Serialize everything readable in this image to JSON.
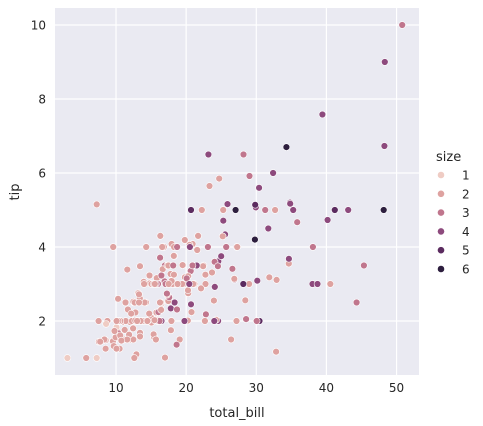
{
  "chart_data": {
    "type": "scatter",
    "title": "",
    "xlabel": "total_bill",
    "ylabel": "tip",
    "xlim": [
      1.3,
      53.2
    ],
    "ylim": [
      0.54,
      10.46
    ],
    "xticks": [
      10,
      20,
      30,
      40,
      50
    ],
    "yticks": [
      2,
      4,
      6,
      8,
      10
    ],
    "grid": true,
    "legend": {
      "title": "size",
      "placement": "right",
      "entries": [
        {
          "label": "1",
          "color": "#EFCCC4"
        },
        {
          "label": "2",
          "color": "#DEA2A0"
        },
        {
          "label": "3",
          "color": "#C0768D"
        },
        {
          "label": "4",
          "color": "#8D4A7D"
        },
        {
          "label": "5",
          "color": "#5B2B5F"
        },
        {
          "label": "6",
          "color": "#2D1E3E"
        }
      ]
    },
    "colors": {
      "background": "#EAEAF2",
      "grid": "#FFFFFF"
    },
    "points": [
      [
        16.99,
        1.01,
        2
      ],
      [
        10.34,
        1.66,
        3
      ],
      [
        21.01,
        3.5,
        3
      ],
      [
        23.68,
        3.31,
        2
      ],
      [
        24.59,
        3.61,
        4
      ],
      [
        25.29,
        4.71,
        4
      ],
      [
        8.77,
        2.0,
        2
      ],
      [
        26.88,
        3.12,
        4
      ],
      [
        15.04,
        1.96,
        2
      ],
      [
        14.78,
        3.23,
        2
      ],
      [
        10.27,
        1.71,
        2
      ],
      [
        35.26,
        5.0,
        4
      ],
      [
        15.42,
        1.57,
        2
      ],
      [
        18.43,
        3.0,
        4
      ],
      [
        14.83,
        3.02,
        2
      ],
      [
        21.58,
        3.92,
        2
      ],
      [
        10.33,
        1.67,
        3
      ],
      [
        16.29,
        3.71,
        3
      ],
      [
        16.97,
        3.5,
        3
      ],
      [
        20.65,
        3.35,
        3
      ],
      [
        17.92,
        4.08,
        2
      ],
      [
        20.29,
        2.75,
        2
      ],
      [
        15.77,
        2.23,
        2
      ],
      [
        39.42,
        7.58,
        4
      ],
      [
        19.82,
        3.18,
        2
      ],
      [
        17.81,
        2.34,
        4
      ],
      [
        13.37,
        2.0,
        2
      ],
      [
        12.69,
        2.0,
        2
      ],
      [
        21.7,
        4.3,
        2
      ],
      [
        19.65,
        3.0,
        2
      ],
      [
        9.55,
        1.45,
        2
      ],
      [
        18.35,
        2.5,
        4
      ],
      [
        15.06,
        3.0,
        2
      ],
      [
        20.69,
        2.45,
        4
      ],
      [
        17.78,
        3.27,
        2
      ],
      [
        24.06,
        3.6,
        3
      ],
      [
        16.31,
        2.0,
        3
      ],
      [
        16.93,
        3.07,
        3
      ],
      [
        18.69,
        2.31,
        3
      ],
      [
        31.27,
        5.0,
        3
      ],
      [
        16.04,
        2.24,
        3
      ],
      [
        17.46,
        2.54,
        2
      ],
      [
        13.94,
        3.06,
        2
      ],
      [
        9.68,
        1.32,
        2
      ],
      [
        30.4,
        5.6,
        4
      ],
      [
        18.29,
        3.0,
        2
      ],
      [
        22.23,
        5.0,
        2
      ],
      [
        32.4,
        6.0,
        4
      ],
      [
        28.55,
        2.05,
        3
      ],
      [
        18.04,
        3.0,
        2
      ],
      [
        12.54,
        2.5,
        2
      ],
      [
        10.29,
        2.6,
        2
      ],
      [
        34.81,
        5.2,
        4
      ],
      [
        9.94,
        1.56,
        2
      ],
      [
        25.56,
        4.34,
        4
      ],
      [
        19.49,
        3.51,
        2
      ],
      [
        38.01,
        3.0,
        4
      ],
      [
        26.41,
        1.5,
        2
      ],
      [
        11.24,
        1.76,
        2
      ],
      [
        48.27,
        6.73,
        4
      ],
      [
        20.29,
        3.21,
        2
      ],
      [
        13.81,
        2.0,
        2
      ],
      [
        11.02,
        1.98,
        2
      ],
      [
        18.29,
        3.76,
        4
      ],
      [
        17.59,
        2.64,
        3
      ],
      [
        20.08,
        3.15,
        3
      ],
      [
        16.45,
        2.47,
        2
      ],
      [
        3.07,
        1.0,
        1
      ],
      [
        20.23,
        2.01,
        2
      ],
      [
        15.01,
        2.09,
        2
      ],
      [
        12.02,
        1.97,
        2
      ],
      [
        17.07,
        3.0,
        3
      ],
      [
        26.86,
        3.14,
        2
      ],
      [
        25.28,
        5.0,
        2
      ],
      [
        14.73,
        2.2,
        2
      ],
      [
        10.51,
        1.25,
        2
      ],
      [
        17.92,
        3.08,
        2
      ],
      [
        27.2,
        4.0,
        4
      ],
      [
        22.76,
        3.0,
        2
      ],
      [
        17.29,
        2.71,
        2
      ],
      [
        19.44,
        3.0,
        2
      ],
      [
        16.66,
        3.4,
        2
      ],
      [
        10.07,
        1.83,
        1
      ],
      [
        32.68,
        5.0,
        2
      ],
      [
        15.98,
        2.03,
        2
      ],
      [
        34.83,
        5.17,
        4
      ],
      [
        13.03,
        2.0,
        2
      ],
      [
        18.28,
        4.0,
        2
      ],
      [
        24.71,
        5.85,
        2
      ],
      [
        21.16,
        3.0,
        2
      ],
      [
        28.97,
        3.0,
        2
      ],
      [
        22.49,
        3.5,
        2
      ],
      [
        5.75,
        1.0,
        2
      ],
      [
        16.32,
        4.3,
        2
      ],
      [
        22.75,
        3.25,
        2
      ],
      [
        40.17,
        4.73,
        4
      ],
      [
        27.28,
        4.0,
        2
      ],
      [
        12.03,
        1.5,
        2
      ],
      [
        21.01,
        3.0,
        2
      ],
      [
        12.46,
        1.5,
        2
      ],
      [
        11.35,
        2.5,
        2
      ],
      [
        15.38,
        3.0,
        2
      ],
      [
        44.3,
        2.5,
        3
      ],
      [
        22.42,
        3.48,
        2
      ],
      [
        20.92,
        4.08,
        2
      ],
      [
        15.36,
        1.64,
        2
      ],
      [
        20.49,
        4.06,
        2
      ],
      [
        25.21,
        4.29,
        2
      ],
      [
        18.24,
        3.76,
        2
      ],
      [
        14.31,
        4.0,
        2
      ],
      [
        14.0,
        3.0,
        2
      ],
      [
        7.25,
        1.0,
        1
      ],
      [
        38.07,
        4.0,
        3
      ],
      [
        23.95,
        2.55,
        2
      ],
      [
        25.71,
        4.0,
        3
      ],
      [
        17.31,
        3.5,
        2
      ],
      [
        29.93,
        5.07,
        4
      ],
      [
        10.65,
        1.5,
        2
      ],
      [
        12.43,
        1.8,
        2
      ],
      [
        24.08,
        2.92,
        4
      ],
      [
        11.69,
        2.31,
        2
      ],
      [
        13.42,
        1.68,
        2
      ],
      [
        14.26,
        2.5,
        2
      ],
      [
        15.95,
        2.0,
        2
      ],
      [
        12.48,
        2.52,
        2
      ],
      [
        29.8,
        4.2,
        6
      ],
      [
        8.52,
        1.48,
        2
      ],
      [
        14.52,
        2.0,
        2
      ],
      [
        11.38,
        2.0,
        2
      ],
      [
        22.82,
        2.18,
        3
      ],
      [
        19.08,
        1.5,
        2
      ],
      [
        20.27,
        2.83,
        2
      ],
      [
        11.17,
        1.5,
        2
      ],
      [
        12.26,
        2.0,
        2
      ],
      [
        18.26,
        3.25,
        2
      ],
      [
        8.51,
        1.25,
        2
      ],
      [
        10.33,
        2.0,
        2
      ],
      [
        14.15,
        2.0,
        2
      ],
      [
        16.0,
        2.0,
        2
      ],
      [
        13.16,
        2.75,
        2
      ],
      [
        17.47,
        3.5,
        2
      ],
      [
        34.3,
        6.7,
        6
      ],
      [
        41.19,
        5.0,
        5
      ],
      [
        27.05,
        5.0,
        6
      ],
      [
        16.43,
        2.3,
        2
      ],
      [
        8.35,
        1.5,
        2
      ],
      [
        18.64,
        1.36,
        3
      ],
      [
        11.87,
        1.63,
        2
      ],
      [
        9.78,
        1.73,
        2
      ],
      [
        7.51,
        2.0,
        2
      ],
      [
        14.07,
        2.5,
        2
      ],
      [
        13.13,
        2.0,
        2
      ],
      [
        17.26,
        2.74,
        3
      ],
      [
        24.55,
        2.0,
        4
      ],
      [
        19.77,
        2.0,
        4
      ],
      [
        29.85,
        5.14,
        5
      ],
      [
        48.17,
        5.0,
        6
      ],
      [
        25.0,
        3.75,
        4
      ],
      [
        13.39,
        2.61,
        2
      ],
      [
        16.49,
        2.0,
        4
      ],
      [
        21.5,
        3.5,
        4
      ],
      [
        12.66,
        2.5,
        2
      ],
      [
        16.21,
        2.0,
        3
      ],
      [
        13.81,
        2.0,
        2
      ],
      [
        17.51,
        3.0,
        2
      ],
      [
        24.52,
        3.48,
        3
      ],
      [
        20.76,
        2.24,
        2
      ],
      [
        31.71,
        4.5,
        4
      ],
      [
        10.59,
        1.61,
        2
      ],
      [
        10.63,
        2.0,
        2
      ],
      [
        50.81,
        10.0,
        3
      ],
      [
        15.81,
        3.16,
        2
      ],
      [
        7.25,
        5.15,
        2
      ],
      [
        31.85,
        3.18,
        2
      ],
      [
        16.82,
        4.0,
        2
      ],
      [
        32.9,
        3.11,
        2
      ],
      [
        17.89,
        2.0,
        2
      ],
      [
        14.48,
        2.0,
        2
      ],
      [
        9.6,
        4.0,
        2
      ],
      [
        34.63,
        3.55,
        2
      ],
      [
        34.65,
        3.68,
        4
      ],
      [
        23.33,
        5.65,
        2
      ],
      [
        45.35,
        3.5,
        3
      ],
      [
        23.17,
        6.5,
        4
      ],
      [
        40.55,
        3.0,
        2
      ],
      [
        20.69,
        5.0,
        5
      ],
      [
        20.9,
        3.5,
        3
      ],
      [
        30.46,
        2.0,
        5
      ],
      [
        18.15,
        3.5,
        3
      ],
      [
        23.1,
        4.0,
        3
      ],
      [
        15.69,
        1.5,
        2
      ],
      [
        19.81,
        4.19,
        2
      ],
      [
        28.44,
        2.56,
        2
      ],
      [
        15.48,
        2.02,
        2
      ],
      [
        16.58,
        4.0,
        2
      ],
      [
        7.56,
        1.44,
        2
      ],
      [
        10.34,
        2.0,
        2
      ],
      [
        43.11,
        5.0,
        4
      ],
      [
        13.0,
        2.0,
        2
      ],
      [
        13.51,
        2.0,
        2
      ],
      [
        18.71,
        4.0,
        3
      ],
      [
        12.74,
        2.01,
        2
      ],
      [
        13.0,
        2.0,
        2
      ],
      [
        16.4,
        2.5,
        2
      ],
      [
        20.53,
        4.0,
        4
      ],
      [
        16.47,
        3.23,
        3
      ],
      [
        26.59,
        3.41,
        3
      ],
      [
        38.73,
        3.0,
        4
      ],
      [
        24.27,
        2.03,
        2
      ],
      [
        12.76,
        2.23,
        2
      ],
      [
        30.06,
        2.0,
        3
      ],
      [
        25.89,
        5.16,
        4
      ],
      [
        48.33,
        9.0,
        4
      ],
      [
        13.27,
        2.5,
        2
      ],
      [
        28.17,
        6.5,
        3
      ],
      [
        12.9,
        1.1,
        2
      ],
      [
        28.15,
        3.0,
        5
      ],
      [
        11.59,
        1.5,
        2
      ],
      [
        7.74,
        1.44,
        2
      ],
      [
        30.14,
        3.09,
        4
      ],
      [
        12.16,
        2.2,
        2
      ],
      [
        13.42,
        3.48,
        2
      ],
      [
        8.58,
        1.92,
        1
      ],
      [
        15.98,
        3.0,
        3
      ],
      [
        13.42,
        1.58,
        2
      ],
      [
        16.27,
        2.5,
        2
      ],
      [
        10.09,
        2.0,
        2
      ],
      [
        20.45,
        3.0,
        4
      ],
      [
        13.28,
        2.72,
        2
      ],
      [
        22.12,
        2.88,
        2
      ],
      [
        24.01,
        2.0,
        4
      ],
      [
        15.69,
        3.0,
        3
      ],
      [
        11.61,
        3.39,
        2
      ],
      [
        10.77,
        1.47,
        2
      ],
      [
        15.53,
        3.0,
        2
      ],
      [
        10.07,
        1.25,
        2
      ],
      [
        12.6,
        1.0,
        2
      ],
      [
        32.83,
        1.17,
        2
      ],
      [
        35.83,
        4.67,
        3
      ],
      [
        29.03,
        5.92,
        3
      ],
      [
        27.18,
        2.0,
        2
      ],
      [
        22.67,
        2.0,
        2
      ],
      [
        17.82,
        1.75,
        2
      ],
      [
        18.78,
        3.0,
        2
      ]
    ]
  }
}
